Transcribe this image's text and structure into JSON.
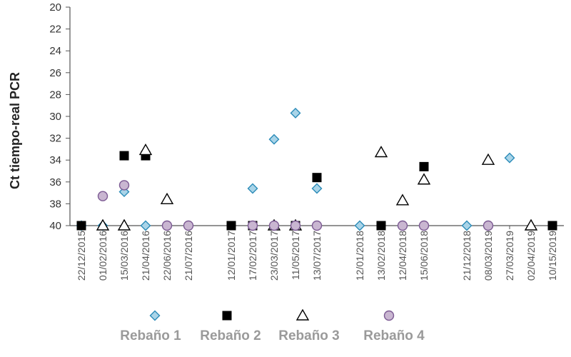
{
  "chart_data": {
    "type": "scatter",
    "ylabel": "Ct tiempo-real PCR",
    "y_reversed": true,
    "ylim": [
      20,
      40
    ],
    "y_ticks": [
      "20",
      "22",
      "24",
      "26",
      "28",
      "30",
      "32",
      "34",
      "36",
      "38",
      "40"
    ],
    "categories": [
      "22/12/2015",
      "01/02/2016",
      "15/03/2016",
      "21/04/2016",
      "22/06/2016",
      "21/07/2016",
      "12/01/2017",
      "17/02/2017",
      "23/03/2017",
      "11/05/2017",
      "13/07/2017",
      "12/01/2018",
      "13/02/2018",
      "12/04/2018",
      "15/06/2018",
      "21/12/2018",
      "08/03/2019",
      "27/03/2019",
      "02/04/2019",
      "10/15/2019"
    ],
    "series": [
      {
        "name": "Rebaño 1",
        "marker": "diamond",
        "fill": "#a9d4e8",
        "stroke": "#2b8bb8",
        "points": [
          [
            0,
            40
          ],
          [
            1,
            40
          ],
          [
            2,
            36.9
          ],
          [
            3,
            40
          ],
          [
            4,
            40
          ],
          [
            5,
            40
          ],
          [
            7,
            36.6
          ],
          [
            8,
            32.1
          ],
          [
            9,
            29.7
          ],
          [
            10,
            36.6
          ],
          [
            11,
            40
          ],
          [
            13,
            40
          ],
          [
            14,
            40
          ],
          [
            15,
            40
          ],
          [
            16,
            40
          ],
          [
            17,
            33.8
          ]
        ]
      },
      {
        "name": "Rebaño 2",
        "marker": "square",
        "fill": "#000000",
        "stroke": "#000000",
        "points": [
          [
            0,
            40
          ],
          [
            2,
            33.6
          ],
          [
            3,
            33.6
          ],
          [
            6,
            40
          ],
          [
            7,
            40
          ],
          [
            9,
            40
          ],
          [
            10,
            35.6
          ],
          [
            12,
            40
          ],
          [
            14,
            34.6
          ],
          [
            19,
            40
          ]
        ]
      },
      {
        "name": "Rebaño 3",
        "marker": "triangle",
        "fill": "#ffffff",
        "stroke": "#000000",
        "points": [
          [
            1,
            40
          ],
          [
            2,
            40
          ],
          [
            3,
            33.1
          ],
          [
            4,
            37.6
          ],
          [
            8,
            40
          ],
          [
            9,
            40
          ],
          [
            12,
            33.3
          ],
          [
            13,
            37.7
          ],
          [
            14,
            35.8
          ],
          [
            16,
            34
          ],
          [
            18,
            40
          ]
        ]
      },
      {
        "name": "Rebaño 4",
        "marker": "circle",
        "fill": "#c9b6d1",
        "stroke": "#7c5a93",
        "points": [
          [
            1,
            37.3
          ],
          [
            2,
            36.3
          ],
          [
            4,
            40
          ],
          [
            5,
            40
          ],
          [
            7,
            40
          ],
          [
            8,
            40
          ],
          [
            9,
            40
          ],
          [
            10,
            40
          ],
          [
            13,
            40
          ],
          [
            14,
            40
          ],
          [
            16,
            40
          ]
        ]
      }
    ],
    "legend_position": "bottom",
    "grid": false
  }
}
